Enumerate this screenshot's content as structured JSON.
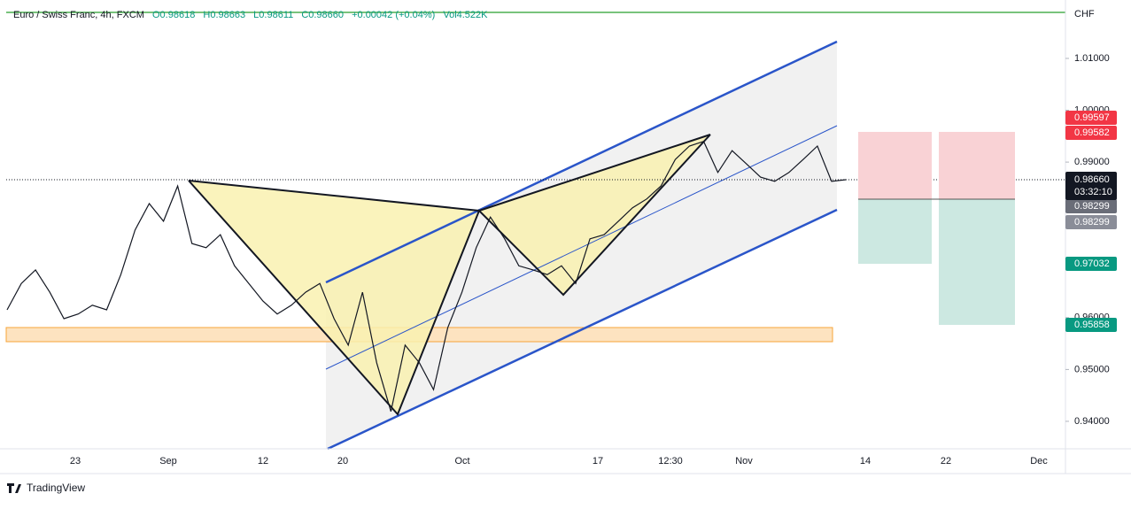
{
  "header": {
    "symbol": "Euro / Swiss Franc, 4h, FXCM",
    "open": "O0.98618",
    "high": "H0.98663",
    "low": "L0.98611",
    "close": "C0.98660",
    "change": "+0.00042 (+0.04%)",
    "volume": "Vol4.522K"
  },
  "price_axis": {
    "currency": "CHF",
    "ylim": [
      0.9347,
      1.0199
    ],
    "ticks": [
      {
        "value": 1.01,
        "label": "1.01000"
      },
      {
        "value": 1.0,
        "label": "1.00000"
      },
      {
        "value": 0.99,
        "label": "0.99000"
      },
      {
        "value": 0.96,
        "label": "0.96000"
      },
      {
        "value": 0.95,
        "label": "0.95000"
      },
      {
        "value": 0.94,
        "label": "0.94000"
      }
    ]
  },
  "time_axis": {
    "labels": [
      "23",
      "Sep",
      "12",
      "20",
      "Oct",
      "17",
      "12:30",
      "Nov",
      "14",
      "22",
      "Dec"
    ]
  },
  "price_series": [
    0.9615,
    0.9666,
    0.9692,
    0.9649,
    0.9598,
    0.9607,
    0.9624,
    0.9615,
    0.9683,
    0.9769,
    0.982,
    0.9786,
    0.9854,
    0.9743,
    0.9735,
    0.976,
    0.97,
    0.9666,
    0.9632,
    0.9607,
    0.9624,
    0.9649,
    0.9666,
    0.9598,
    0.9547,
    0.9649,
    0.9513,
    0.9419,
    0.9547,
    0.9513,
    0.9461,
    0.9581,
    0.9649,
    0.9735,
    0.9794,
    0.9752,
    0.97,
    0.9692,
    0.9683,
    0.97,
    0.9666,
    0.9752,
    0.976,
    0.9786,
    0.9812,
    0.9829,
    0.9854,
    0.9905,
    0.9931,
    0.994,
    0.988,
    0.9922,
    0.9897,
    0.9871,
    0.9863,
    0.988,
    0.9905,
    0.9931,
    0.9863,
    0.9866
  ],
  "price_badges": [
    {
      "label": "0.99597",
      "color": "#f23645"
    },
    {
      "label": "0.99582",
      "color": "#f23645"
    },
    {
      "label": "0.98299",
      "color": "#6a6d78"
    },
    {
      "label": "0.98299",
      "color": "#8a8d98"
    },
    {
      "label": "0.97032",
      "color": "#089981"
    },
    {
      "label": "0.95858",
      "color": "#089981"
    }
  ],
  "last_price": {
    "price": "0.98660",
    "countdown": "03:32:10"
  },
  "branding": "TradingView"
}
